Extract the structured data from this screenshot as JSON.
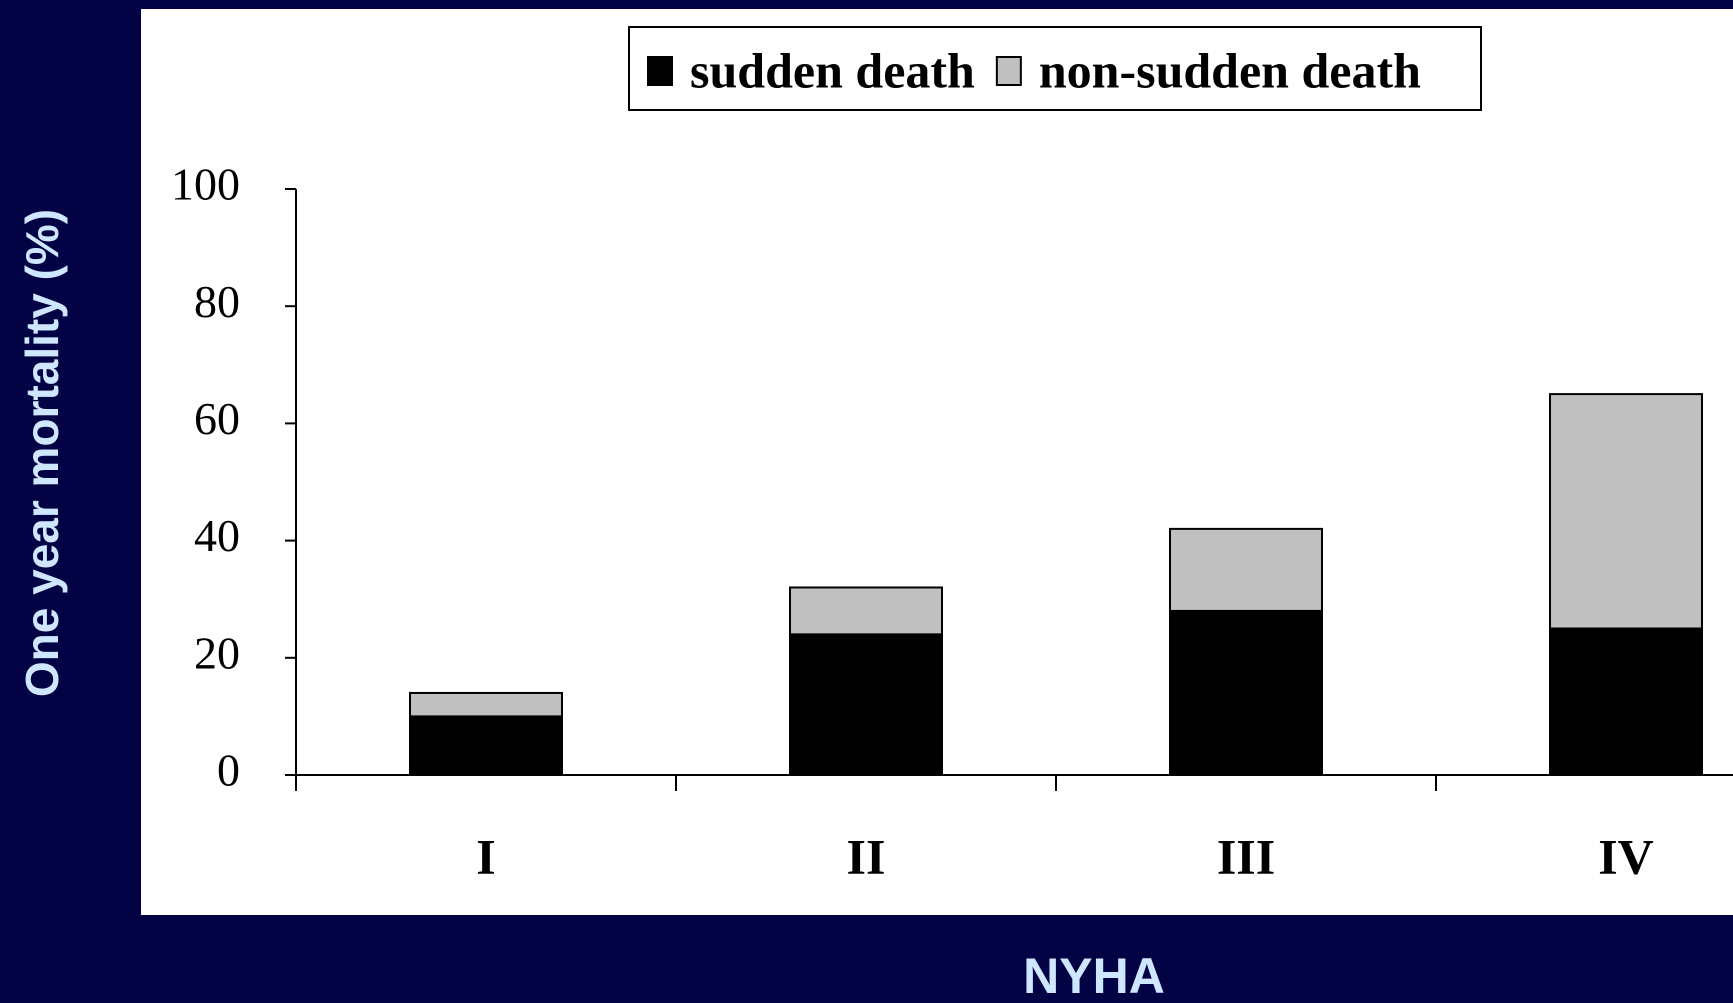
{
  "chart_data": {
    "type": "bar",
    "stacked": true,
    "x_label": "NYHA",
    "y_label": "One year mortality (%)",
    "categories": [
      "I",
      "II",
      "III",
      "IV"
    ],
    "series": [
      {
        "name": "sudden death",
        "color": "#000000",
        "values": [
          10,
          24,
          28,
          25
        ]
      },
      {
        "name": "non-sudden death",
        "color": "#c0c0c0",
        "values": [
          4,
          8,
          14,
          40
        ]
      }
    ],
    "ylim": [
      0,
      100
    ],
    "yticks": [
      0,
      20,
      40,
      60,
      80,
      100
    ],
    "grid": false,
    "legend": "top"
  }
}
